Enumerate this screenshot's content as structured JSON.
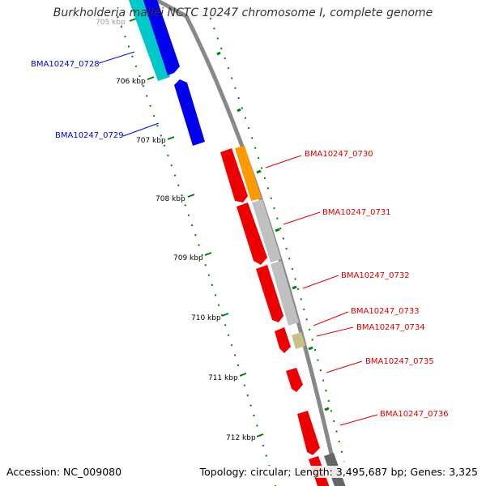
{
  "title": "Burkholderia mallei NCTC 10247 chromosome I, complete genome",
  "footer": {
    "accession": "Accession: NC_009080",
    "summary": "Topology: circular; Length: 3,495,687 bp; Genes: 3,325"
  },
  "colors": {
    "backbone": "#888888",
    "tick": "#008000",
    "forward_label": "#0000cc",
    "reverse_label": "#dd0000"
  },
  "kbp_ticks": [
    "705 kbp",
    "706 kbp",
    "707 kbp",
    "708 kbp",
    "709 kbp",
    "710 kbp",
    "711 kbp",
    "712 kbp"
  ],
  "genes": [
    {
      "label": "BMA10247_0728",
      "color": "#0000ee",
      "accent": "#00c8c8",
      "strand": "outer"
    },
    {
      "label": "BMA10247_0729",
      "color": "#0000ee",
      "strand": "outer"
    },
    {
      "label": "BMA10247_0730",
      "color": "#ee0000",
      "accent": "#ff9900",
      "strand": "inner"
    },
    {
      "label": "BMA10247_0731",
      "color": "#ee0000",
      "accent": "#c0c0c0",
      "strand": "inner"
    },
    {
      "label": "BMA10247_0732",
      "color": "#ee0000",
      "accent": "#c0c0c0",
      "strand": "inner"
    },
    {
      "label": "BMA10247_0733",
      "color": "#ee0000",
      "strand": "inner"
    },
    {
      "label": "BMA10247_0734",
      "color": "#ee0000",
      "accent": "#c8c08a",
      "strand": "inner"
    },
    {
      "label": "BMA10247_0735",
      "color": "#ee0000",
      "strand": "inner"
    },
    {
      "label": "BMA10247_0736",
      "color": "#ee0000",
      "strand": "inner"
    }
  ]
}
